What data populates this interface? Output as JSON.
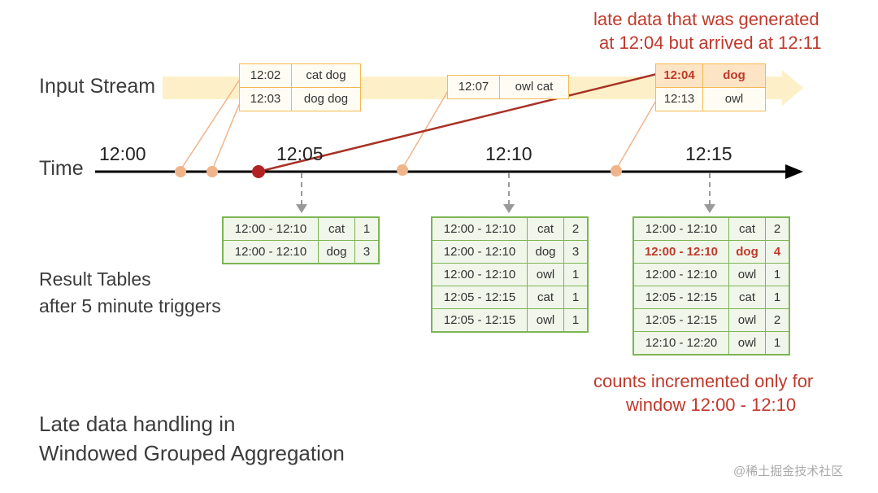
{
  "annotations": {
    "late_note_line1": "late data that was generated",
    "late_note_line2": "at 12:04 but arrived at 12:11",
    "counts_note_line1": "counts incremented only for",
    "counts_note_line2": "window 12:00 - 12:10"
  },
  "labels": {
    "input_stream": "Input Stream",
    "time": "Time",
    "result_tables_line1": "Result Tables",
    "result_tables_line2": "after 5 minute triggers",
    "title_line1": "Late data handling in",
    "title_line2": "Windowed Grouped Aggregation"
  },
  "timeline": {
    "ticks": [
      "12:00",
      "12:05",
      "12:10",
      "12:15"
    ]
  },
  "input_events": [
    {
      "rows": [
        {
          "time": "12:02",
          "words": "cat dog"
        },
        {
          "time": "12:03",
          "words": "dog dog"
        }
      ]
    },
    {
      "rows": [
        {
          "time": "12:07",
          "words": "owl cat"
        }
      ]
    },
    {
      "rows": [
        {
          "time": "12:04",
          "words": "dog",
          "late": true
        },
        {
          "time": "12:13",
          "words": "owl"
        }
      ]
    }
  ],
  "result_tables": [
    {
      "rows": [
        {
          "window": "12:00 - 12:10",
          "word": "cat",
          "count": "1"
        },
        {
          "window": "12:00 - 12:10",
          "word": "dog",
          "count": "3"
        }
      ]
    },
    {
      "rows": [
        {
          "window": "12:00 - 12:10",
          "word": "cat",
          "count": "2"
        },
        {
          "window": "12:00 - 12:10",
          "word": "dog",
          "count": "3"
        },
        {
          "window": "12:00 - 12:10",
          "word": "owl",
          "count": "1"
        },
        {
          "window": "12:05 - 12:15",
          "word": "cat",
          "count": "1"
        },
        {
          "window": "12:05 - 12:15",
          "word": "owl",
          "count": "1"
        }
      ]
    },
    {
      "rows": [
        {
          "window": "12:00 - 12:10",
          "word": "cat",
          "count": "2"
        },
        {
          "window": "12:00 - 12:10",
          "word": "dog",
          "count": "4",
          "highlight": true
        },
        {
          "window": "12:00 - 12:10",
          "word": "owl",
          "count": "1"
        },
        {
          "window": "12:05 - 12:15",
          "word": "cat",
          "count": "1"
        },
        {
          "window": "12:05 - 12:15",
          "word": "owl",
          "count": "2"
        },
        {
          "window": "12:10 - 12:20",
          "word": "owl",
          "count": "1"
        }
      ]
    }
  ],
  "watermark": "@稀土掘金技术社区",
  "colors": {
    "stream_band": "#fdf0c8",
    "event_border": "#f4b850",
    "event_dot": "#f0b48a",
    "late_red": "#c0392b",
    "table_green": "#7cb552",
    "table_fill": "#f0f6ea",
    "axis": "#000000"
  }
}
